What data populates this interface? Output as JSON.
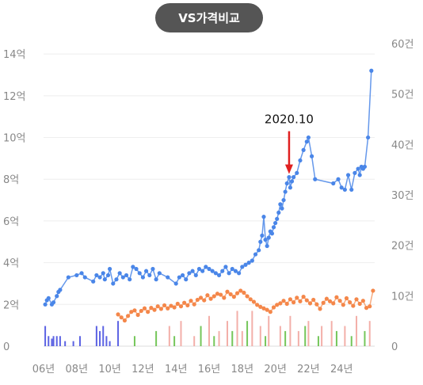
{
  "chart_data": {
    "type": "line",
    "title_button": "VS가격비교",
    "left_axis": {
      "ticks": [
        0,
        2,
        4,
        6,
        8,
        10,
        12,
        14
      ],
      "tick_labels": [
        "0",
        "2억",
        "4억",
        "6억",
        "8억",
        "10억",
        "12억",
        "14억"
      ],
      "range": [
        0,
        14.5
      ]
    },
    "right_axis": {
      "ticks": [
        0,
        10,
        20,
        30,
        40,
        50,
        60
      ],
      "tick_labels": [
        "0",
        "10건",
        "20건",
        "30건",
        "40건",
        "50건",
        "60건"
      ],
      "range": [
        0,
        60
      ]
    },
    "x_axis": {
      "tick_values": [
        2006,
        2008,
        2010,
        2012,
        2014,
        2016,
        2018,
        2020,
        2022,
        2024
      ],
      "tick_labels": [
        "06년",
        "08년",
        "10년",
        "12년",
        "14년",
        "16년",
        "18년",
        "20년",
        "22년",
        "24년"
      ],
      "range": [
        2006.0,
        2026.0
      ]
    },
    "annotation": {
      "label": "2020.10",
      "x": 2020.83,
      "y": 8.1,
      "color": "#e02020"
    },
    "series": [
      {
        "color": "#4a86e8",
        "axis": "left",
        "points": [
          [
            2006.1,
            2.0
          ],
          [
            2006.2,
            2.2
          ],
          [
            2006.3,
            2.3
          ],
          [
            2006.5,
            2.0
          ],
          [
            2006.6,
            2.1
          ],
          [
            2006.8,
            2.4
          ],
          [
            2006.9,
            2.6
          ],
          [
            2007.0,
            2.7
          ],
          [
            2007.5,
            3.3
          ],
          [
            2008.0,
            3.4
          ],
          [
            2008.3,
            3.5
          ],
          [
            2008.5,
            3.3
          ],
          [
            2009.0,
            3.1
          ],
          [
            2009.2,
            3.4
          ],
          [
            2009.4,
            3.3
          ],
          [
            2009.6,
            3.5
          ],
          [
            2009.7,
            3.2
          ],
          [
            2009.9,
            3.4
          ],
          [
            2010.0,
            3.7
          ],
          [
            2010.2,
            3.0
          ],
          [
            2010.4,
            3.2
          ],
          [
            2010.6,
            3.5
          ],
          [
            2010.8,
            3.3
          ],
          [
            2011.0,
            3.4
          ],
          [
            2011.2,
            3.2
          ],
          [
            2011.4,
            3.8
          ],
          [
            2011.6,
            3.7
          ],
          [
            2011.8,
            3.5
          ],
          [
            2012.0,
            3.3
          ],
          [
            2012.2,
            3.6
          ],
          [
            2012.4,
            3.4
          ],
          [
            2012.6,
            3.7
          ],
          [
            2012.8,
            3.2
          ],
          [
            2013.0,
            3.5
          ],
          [
            2013.5,
            3.3
          ],
          [
            2014.0,
            3.0
          ],
          [
            2014.2,
            3.3
          ],
          [
            2014.4,
            3.4
          ],
          [
            2014.6,
            3.2
          ],
          [
            2014.8,
            3.5
          ],
          [
            2015.0,
            3.6
          ],
          [
            2015.2,
            3.4
          ],
          [
            2015.4,
            3.7
          ],
          [
            2015.6,
            3.6
          ],
          [
            2015.8,
            3.8
          ],
          [
            2016.0,
            3.7
          ],
          [
            2016.2,
            3.6
          ],
          [
            2016.4,
            3.5
          ],
          [
            2016.6,
            3.4
          ],
          [
            2016.8,
            3.6
          ],
          [
            2017.0,
            3.8
          ],
          [
            2017.2,
            3.5
          ],
          [
            2017.4,
            3.7
          ],
          [
            2017.6,
            3.6
          ],
          [
            2017.8,
            3.5
          ],
          [
            2018.0,
            3.8
          ],
          [
            2018.2,
            3.9
          ],
          [
            2018.4,
            4.0
          ],
          [
            2018.6,
            4.1
          ],
          [
            2018.8,
            4.4
          ],
          [
            2019.0,
            4.6
          ],
          [
            2019.1,
            5.0
          ],
          [
            2019.2,
            5.3
          ],
          [
            2019.3,
            6.2
          ],
          [
            2019.4,
            5.1
          ],
          [
            2019.5,
            4.8
          ],
          [
            2019.6,
            5.2
          ],
          [
            2019.7,
            5.5
          ],
          [
            2019.8,
            5.4
          ],
          [
            2019.9,
            5.7
          ],
          [
            2020.0,
            5.9
          ],
          [
            2020.1,
            6.1
          ],
          [
            2020.2,
            6.4
          ],
          [
            2020.3,
            6.8
          ],
          [
            2020.4,
            6.6
          ],
          [
            2020.5,
            7.0
          ],
          [
            2020.6,
            7.4
          ],
          [
            2020.7,
            7.8
          ],
          [
            2020.83,
            8.1
          ],
          [
            2020.9,
            7.6
          ],
          [
            2021.0,
            7.9
          ],
          [
            2021.1,
            8.1
          ],
          [
            2021.3,
            8.3
          ],
          [
            2021.5,
            8.9
          ],
          [
            2021.7,
            9.4
          ],
          [
            2021.9,
            9.8
          ],
          [
            2022.0,
            10.0
          ],
          [
            2022.2,
            9.1
          ],
          [
            2022.4,
            8.0
          ],
          [
            2023.5,
            7.8
          ],
          [
            2023.8,
            8.0
          ],
          [
            2024.0,
            7.6
          ],
          [
            2024.2,
            7.5
          ],
          [
            2024.4,
            8.2
          ],
          [
            2024.6,
            7.5
          ],
          [
            2024.8,
            8.3
          ],
          [
            2025.0,
            8.5
          ],
          [
            2025.1,
            8.2
          ],
          [
            2025.2,
            8.6
          ],
          [
            2025.3,
            8.5
          ],
          [
            2025.4,
            8.6
          ],
          [
            2025.6,
            10.0
          ],
          [
            2025.8,
            13.2
          ]
        ]
      },
      {
        "color": "#f4874a",
        "axis": "right",
        "points": [
          [
            2010.5,
            6.3
          ],
          [
            2010.7,
            5.7
          ],
          [
            2010.9,
            5.1
          ],
          [
            2011.1,
            6.0
          ],
          [
            2011.3,
            6.8
          ],
          [
            2011.5,
            7.1
          ],
          [
            2011.7,
            6.2
          ],
          [
            2011.9,
            7.0
          ],
          [
            2012.1,
            7.5
          ],
          [
            2012.3,
            6.8
          ],
          [
            2012.5,
            7.6
          ],
          [
            2012.7,
            7.2
          ],
          [
            2012.9,
            7.9
          ],
          [
            2013.1,
            7.4
          ],
          [
            2013.3,
            8.1
          ],
          [
            2013.5,
            7.5
          ],
          [
            2013.7,
            8.0
          ],
          [
            2013.9,
            7.7
          ],
          [
            2014.1,
            8.4
          ],
          [
            2014.3,
            7.9
          ],
          [
            2014.5,
            8.6
          ],
          [
            2014.7,
            8.1
          ],
          [
            2014.9,
            9.0
          ],
          [
            2015.1,
            8.3
          ],
          [
            2015.3,
            9.2
          ],
          [
            2015.5,
            9.6
          ],
          [
            2015.7,
            9.1
          ],
          [
            2015.9,
            10.1
          ],
          [
            2016.1,
            9.4
          ],
          [
            2016.3,
            9.9
          ],
          [
            2016.5,
            10.4
          ],
          [
            2016.7,
            10.2
          ],
          [
            2016.9,
            9.6
          ],
          [
            2017.1,
            10.8
          ],
          [
            2017.3,
            10.3
          ],
          [
            2017.5,
            9.8
          ],
          [
            2017.7,
            10.5
          ],
          [
            2017.9,
            11.0
          ],
          [
            2018.1,
            10.6
          ],
          [
            2018.3,
            9.9
          ],
          [
            2018.5,
            9.3
          ],
          [
            2018.7,
            8.8
          ],
          [
            2018.9,
            8.2
          ],
          [
            2019.1,
            7.8
          ],
          [
            2019.3,
            7.5
          ],
          [
            2019.5,
            7.2
          ],
          [
            2019.7,
            6.8
          ],
          [
            2019.9,
            7.7
          ],
          [
            2020.1,
            8.2
          ],
          [
            2020.3,
            8.5
          ],
          [
            2020.5,
            9.0
          ],
          [
            2020.7,
            8.4
          ],
          [
            2020.9,
            9.3
          ],
          [
            2021.1,
            8.7
          ],
          [
            2021.3,
            9.6
          ],
          [
            2021.5,
            8.9
          ],
          [
            2021.7,
            9.8
          ],
          [
            2021.9,
            9.1
          ],
          [
            2022.1,
            8.5
          ],
          [
            2022.3,
            9.2
          ],
          [
            2022.5,
            8.3
          ],
          [
            2022.7,
            7.4
          ],
          [
            2022.9,
            8.6
          ],
          [
            2023.1,
            9.4
          ],
          [
            2023.3,
            8.9
          ],
          [
            2023.5,
            8.5
          ],
          [
            2023.7,
            9.7
          ],
          [
            2023.9,
            9.0
          ],
          [
            2024.1,
            8.2
          ],
          [
            2024.3,
            9.5
          ],
          [
            2024.5,
            8.7
          ],
          [
            2024.7,
            8.0
          ],
          [
            2024.9,
            9.3
          ],
          [
            2025.1,
            8.4
          ],
          [
            2025.3,
            9.0
          ],
          [
            2025.5,
            7.6
          ],
          [
            2025.7,
            7.9
          ],
          [
            2025.9,
            11.0
          ]
        ]
      }
    ],
    "bar_series": [
      {
        "color": "#4a52e0",
        "axis": "right",
        "bars": [
          [
            2006.1,
            4.0
          ],
          [
            2006.3,
            2.0
          ],
          [
            2006.5,
            1.5
          ],
          [
            2006.6,
            2.0
          ],
          [
            2006.8,
            2.0
          ],
          [
            2007.0,
            2.0
          ],
          [
            2007.3,
            1.0
          ],
          [
            2007.8,
            1.0
          ],
          [
            2008.2,
            2.0
          ],
          [
            2009.2,
            4.0
          ],
          [
            2009.4,
            3.0
          ],
          [
            2009.6,
            4.0
          ],
          [
            2009.8,
            2.0
          ],
          [
            2010.0,
            1.0
          ],
          [
            2010.5,
            5.0
          ]
        ]
      },
      {
        "color": "#f2a6a0",
        "axis": "right",
        "bars": [
          [
            2013.6,
            4.0
          ],
          [
            2014.3,
            5.0
          ],
          [
            2015.1,
            2.0
          ],
          [
            2016.0,
            6.0
          ],
          [
            2016.6,
            3.0
          ],
          [
            2017.1,
            5.0
          ],
          [
            2017.7,
            7.0
          ],
          [
            2018.0,
            3.0
          ],
          [
            2018.6,
            7.0
          ],
          [
            2019.1,
            4.0
          ],
          [
            2019.6,
            6.0
          ],
          [
            2020.3,
            4.0
          ],
          [
            2020.9,
            6.0
          ],
          [
            2021.4,
            3.0
          ],
          [
            2022.0,
            5.0
          ],
          [
            2022.8,
            4.0
          ],
          [
            2023.4,
            5.0
          ],
          [
            2024.2,
            4.0
          ],
          [
            2024.9,
            6.0
          ],
          [
            2025.7,
            5.0
          ]
        ]
      },
      {
        "color": "#66c048",
        "axis": "right",
        "bars": [
          [
            2011.5,
            2.0
          ],
          [
            2012.8,
            3.0
          ],
          [
            2013.9,
            2.0
          ],
          [
            2015.5,
            4.0
          ],
          [
            2016.3,
            2.0
          ],
          [
            2017.4,
            3.0
          ],
          [
            2018.3,
            5.0
          ],
          [
            2019.4,
            2.0
          ],
          [
            2020.6,
            3.0
          ],
          [
            2021.8,
            4.0
          ],
          [
            2022.6,
            2.0
          ],
          [
            2023.7,
            3.0
          ],
          [
            2024.6,
            2.0
          ],
          [
            2025.4,
            3.0
          ]
        ]
      }
    ]
  }
}
